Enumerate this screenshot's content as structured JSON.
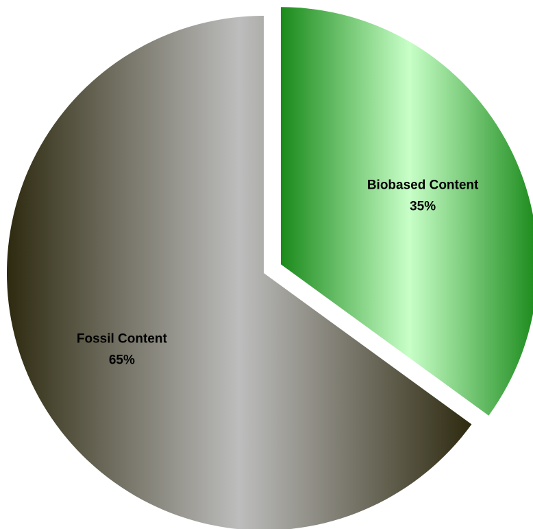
{
  "chart_data": {
    "type": "pie",
    "title": "",
    "slices": [
      {
        "label": "Biobased Content",
        "value": 35,
        "value_label": "35%",
        "exploded": true,
        "gradient": [
          "#1a8a1a",
          "#c8ffc8"
        ]
      },
      {
        "label": "Fossil Content",
        "value": 65,
        "value_label": "65%",
        "exploded": false,
        "gradient": [
          "#2e2a10",
          "#bdbdbd"
        ]
      }
    ],
    "legend": "none",
    "start": "top, clockwise"
  }
}
